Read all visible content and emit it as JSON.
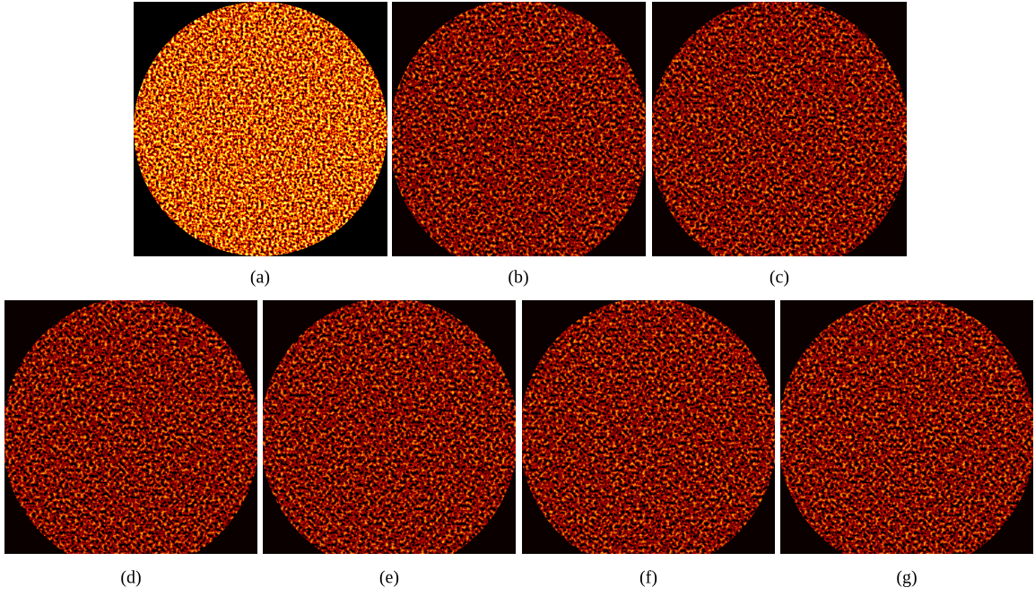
{
  "panels": [
    {
      "label": "(a)"
    },
    {
      "label": "(b)"
    },
    {
      "label": "(c)"
    },
    {
      "label": "(d)"
    },
    {
      "label": "(e)"
    },
    {
      "label": "(f)"
    },
    {
      "label": "(g)"
    }
  ]
}
